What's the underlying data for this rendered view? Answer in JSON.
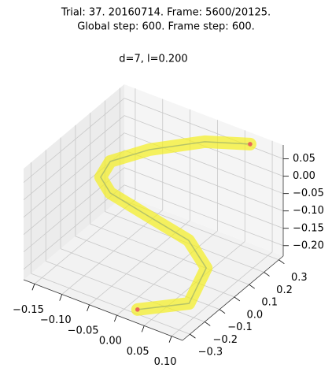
{
  "chart_data": {
    "type": "line3d",
    "title": [
      "Trial: 37. 20160714. Frame: 5600/20125.",
      "Global step: 600. Frame step: 600."
    ],
    "subtitle": "d=7, l=0.200",
    "xlim": [
      -0.17,
      0.12
    ],
    "ylim": [
      -0.35,
      0.33
    ],
    "zlim": [
      -0.23,
      0.09
    ],
    "xticks": [
      {
        "value": -0.15,
        "label": "−0.15"
      },
      {
        "value": -0.1,
        "label": "−0.10"
      },
      {
        "value": -0.05,
        "label": "−0.05"
      },
      {
        "value": 0,
        "label": "0.00"
      },
      {
        "value": 0.05,
        "label": "0.05"
      },
      {
        "value": 0.1,
        "label": "0.10"
      }
    ],
    "yticks": [
      {
        "value": -0.3,
        "label": "−0.3"
      },
      {
        "value": -0.2,
        "label": "−0.2"
      },
      {
        "value": -0.1,
        "label": "−0.1"
      },
      {
        "value": 0,
        "label": "0.0"
      },
      {
        "value": 0.1,
        "label": "0.1"
      },
      {
        "value": 0.2,
        "label": "0.2"
      },
      {
        "value": 0.3,
        "label": "0.3"
      }
    ],
    "zticks": [
      {
        "value": 0.05,
        "label": "0.05"
      },
      {
        "value": 0,
        "label": "0.00"
      },
      {
        "value": -0.05,
        "label": "−0.05"
      },
      {
        "value": -0.1,
        "label": "−0.10"
      },
      {
        "value": -0.15,
        "label": "−0.15"
      },
      {
        "value": -0.2,
        "label": "−0.20"
      }
    ],
    "grid": true,
    "series": [
      {
        "color": "#f5f020",
        "marker_color": "#e8685a",
        "x": [
          0.033,
          0.103,
          0.086,
          0.037,
          -0.033,
          -0.103,
          -0.124,
          -0.121,
          -0.075,
          -0.003,
          0.072
        ],
        "y": [
          -0.332,
          -0.243,
          -0.064,
          -0.002,
          -0.008,
          -0.013,
          0.0,
          0.054,
          0.148,
          0.255,
          0.284
        ],
        "z": [
          -0.2,
          -0.172,
          -0.144,
          -0.116,
          -0.088,
          -0.06,
          -0.032,
          -0.004,
          0.024,
          0.052,
          0.08
        ]
      }
    ]
  }
}
